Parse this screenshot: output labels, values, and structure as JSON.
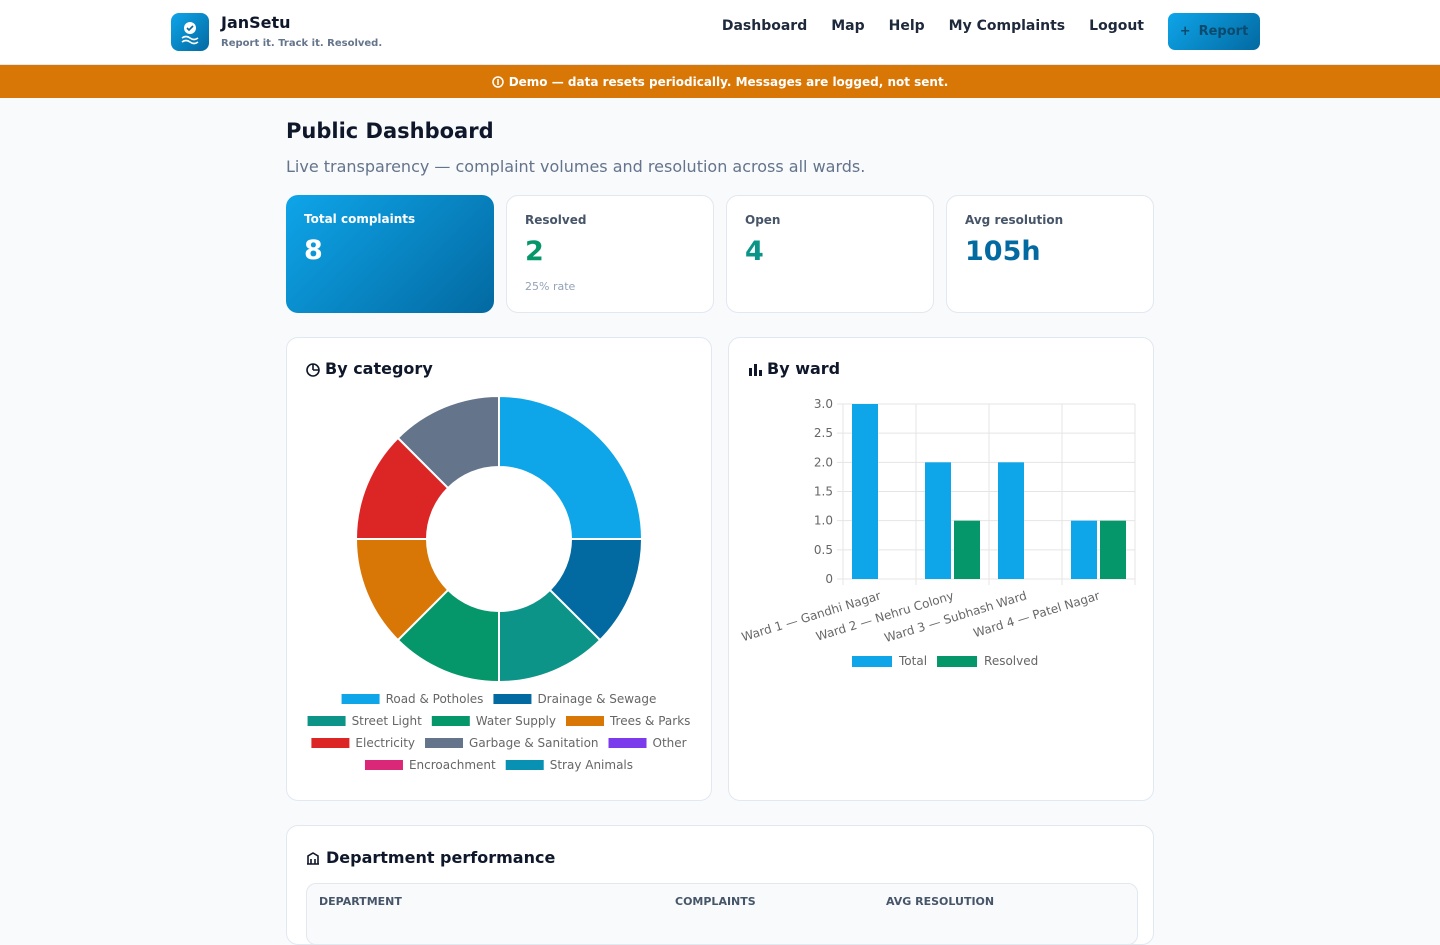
{
  "header": {
    "brand": "JanSetu",
    "tagline": "Report it. Track it. Resolved.",
    "nav": [
      "Dashboard",
      "Map",
      "Help",
      "My Complaints",
      "Logout"
    ],
    "button": "Report"
  },
  "banner": "Demo — data resets periodically. Messages are logged, not sent.",
  "page": {
    "title": "Public Dashboard",
    "subtitle": "Live transparency — complaint volumes and resolution across all wards."
  },
  "stats": [
    {
      "label": "Total complaints",
      "value": 8
    },
    {
      "label": "Resolved",
      "value": 2,
      "note": "25% rate"
    },
    {
      "label": "Open",
      "value": 4
    },
    {
      "label": "Avg resolution",
      "value": "105h"
    }
  ],
  "chart_data": [
    {
      "type": "pie",
      "title": "By category",
      "categories": [
        "Road & Potholes",
        "Drainage & Sewage",
        "Street Light",
        "Water Supply",
        "Trees & Parks",
        "Electricity",
        "Garbage & Sanitation",
        "Other",
        "Encroachment",
        "Stray Animals"
      ],
      "values": [
        2,
        1,
        1,
        1,
        1,
        1,
        1,
        0,
        0,
        0
      ],
      "colors": [
        "#0ea5e9",
        "#0369a1",
        "#0d9488",
        "#059669",
        "#d97706",
        "#dc2626",
        "#64748b",
        "#7c3aed",
        "#db2777",
        "#0891b2"
      ],
      "donut": true
    },
    {
      "type": "bar",
      "title": "By ward",
      "categories": [
        "Ward 1 — Gandhi Nagar",
        "Ward 2 — Nehru Colony",
        "Ward 3 — Subhash Ward",
        "Ward 4 — Patel Nagar"
      ],
      "series": [
        {
          "name": "Total",
          "color": "#0ea5e9",
          "values": [
            3,
            2,
            2,
            1
          ]
        },
        {
          "name": "Resolved",
          "color": "#059669",
          "values": [
            0,
            1,
            0,
            1
          ]
        }
      ],
      "ylim": [
        0,
        3
      ],
      "yticks": [
        0,
        0.5,
        {
          "value": 1,
          "label": "1.0"
        },
        1.5,
        {
          "value": 2,
          "label": "2.0"
        },
        2.5,
        {
          "value": 3,
          "label": "3.0"
        }
      ],
      "grid": true
    }
  ],
  "department": {
    "title": "Department performance",
    "columns": [
      "DEPARTMENT",
      "COMPLAINTS",
      "AVG RESOLUTION"
    ]
  }
}
